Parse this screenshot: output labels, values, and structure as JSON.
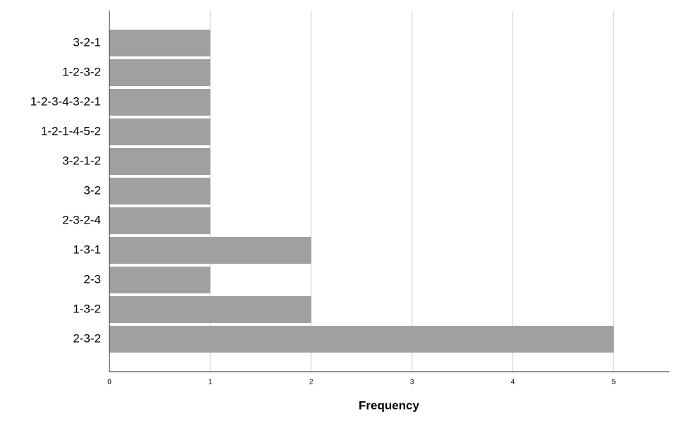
{
  "chart_data": {
    "type": "barh",
    "x_label": "Frequency",
    "categories": [
      "3-2-1",
      "1-2-3-2",
      "1-2-3-4-3-2-1",
      "1-2-1-4-5-2",
      "3-2-1-2",
      "3-2",
      "2-3-2-4",
      "1-3-1",
      "2-3",
      "1-3-2",
      "2-3-2"
    ],
    "values": [
      1,
      1,
      1,
      1,
      1,
      1,
      1,
      2,
      1,
      2,
      5
    ],
    "color": "#a0a0a0",
    "xlim": [
      0,
      5.55
    ],
    "xticks": [
      0,
      1,
      2,
      3,
      4,
      5
    ],
    "grid": true
  }
}
